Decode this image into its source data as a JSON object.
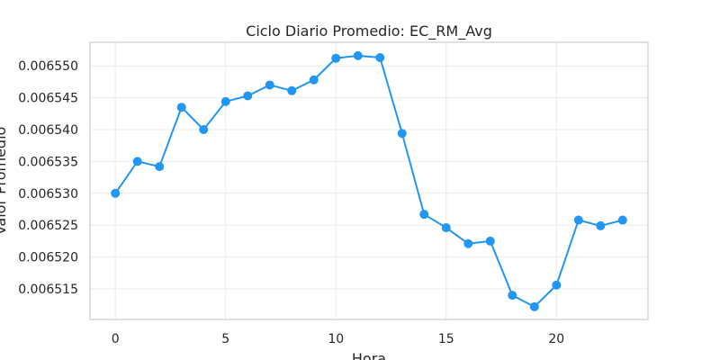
{
  "chart_data": {
    "type": "line",
    "title": "Ciclo Diario Promedio: EC_RM_Avg",
    "xlabel": "Hora",
    "ylabel": "Valor Promedio",
    "xlim": [
      -1.15,
      24.15
    ],
    "ylim": [
      0.0065102,
      0.0065537
    ],
    "x_ticks": [
      0,
      5,
      10,
      15,
      20
    ],
    "x_tick_labels": [
      "0",
      "5",
      "10",
      "15",
      "20"
    ],
    "y_ticks": [
      0.006515,
      0.00652,
      0.006525,
      0.00653,
      0.006535,
      0.00654,
      0.006545,
      0.00655
    ],
    "y_tick_labels": [
      "0.006515",
      "0.006520",
      "0.006525",
      "0.006530",
      "0.006535",
      "0.006540",
      "0.006545",
      "0.006550"
    ],
    "grid": true,
    "color": "#2196f3",
    "x": [
      0,
      1,
      2,
      3,
      4,
      5,
      6,
      7,
      8,
      9,
      10,
      11,
      12,
      13,
      14,
      15,
      16,
      17,
      18,
      19,
      20,
      21,
      22,
      23
    ],
    "series": [
      {
        "values": [
          0.00653,
          0.006535,
          0.0065342,
          0.0065435,
          0.00654,
          0.0065444,
          0.0065453,
          0.006547,
          0.0065461,
          0.0065478,
          0.0065512,
          0.0065516,
          0.0065513,
          0.0065394,
          0.0065267,
          0.0065246,
          0.0065221,
          0.0065225,
          0.006514,
          0.0065122,
          0.0065156,
          0.0065258,
          0.0065249,
          0.0065258
        ]
      }
    ]
  }
}
